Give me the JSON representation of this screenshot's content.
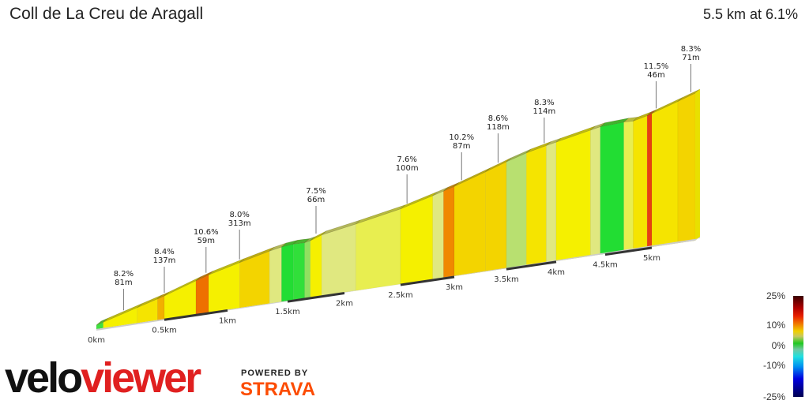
{
  "header": {
    "title": "Coll de La Creu de Aragall",
    "summary": "5.5 km at 6.1%"
  },
  "chart_data": {
    "type": "area",
    "title": "Coll de La Creu de Aragall",
    "total_distance_km": 5.5,
    "average_grade_pct": 6.1,
    "x_ticks": [
      "0km",
      "0.5km",
      "1km",
      "1.5km",
      "2km",
      "2.5km",
      "3km",
      "3.5km",
      "4km",
      "4.5km",
      "5km"
    ],
    "segments": [
      {
        "from": 0,
        "to": 0.05,
        "grade": 1
      },
      {
        "from": 0.05,
        "to": 0.3,
        "grade": 6
      },
      {
        "from": 0.3,
        "to": 0.45,
        "grade": 7
      },
      {
        "from": 0.45,
        "to": 0.5,
        "grade": 9
      },
      {
        "from": 0.5,
        "to": 0.75,
        "grade": 6
      },
      {
        "from": 0.75,
        "to": 0.85,
        "grade": 11
      },
      {
        "from": 0.85,
        "to": 1.1,
        "grade": 6
      },
      {
        "from": 1.1,
        "to": 1.35,
        "grade": 8
      },
      {
        "from": 1.35,
        "to": 1.45,
        "grade": 4
      },
      {
        "from": 1.45,
        "to": 1.55,
        "grade": 0
      },
      {
        "from": 1.55,
        "to": 1.65,
        "grade": 0.5
      },
      {
        "from": 1.65,
        "to": 1.7,
        "grade": 2
      },
      {
        "from": 1.7,
        "to": 1.8,
        "grade": 6
      },
      {
        "from": 1.8,
        "to": 2.1,
        "grade": 4
      },
      {
        "from": 2.1,
        "to": 2.5,
        "grade": 5
      },
      {
        "from": 2.5,
        "to": 2.8,
        "grade": 6
      },
      {
        "from": 2.8,
        "to": 2.9,
        "grade": 4
      },
      {
        "from": 2.9,
        "to": 3.0,
        "grade": 10
      },
      {
        "from": 3.0,
        "to": 3.3,
        "grade": 8
      },
      {
        "from": 3.3,
        "to": 3.5,
        "grade": 8
      },
      {
        "from": 3.5,
        "to": 3.7,
        "grade": 3
      },
      {
        "from": 3.7,
        "to": 3.9,
        "grade": 7
      },
      {
        "from": 3.9,
        "to": 4.0,
        "grade": 4
      },
      {
        "from": 4.0,
        "to": 4.35,
        "grade": 6
      },
      {
        "from": 4.35,
        "to": 4.45,
        "grade": 4
      },
      {
        "from": 4.45,
        "to": 4.7,
        "grade": 0
      },
      {
        "from": 4.7,
        "to": 4.8,
        "grade": 5
      },
      {
        "from": 4.8,
        "to": 4.95,
        "grade": 7
      },
      {
        "from": 4.95,
        "to": 5.0,
        "grade": 12
      },
      {
        "from": 5.0,
        "to": 5.3,
        "grade": 7
      },
      {
        "from": 5.3,
        "to": 5.5,
        "grade": 8
      }
    ],
    "annotations": [
      {
        "km": 0.2,
        "grade": "8.2%",
        "length": "81m"
      },
      {
        "km": 0.5,
        "grade": "8.4%",
        "length": "137m"
      },
      {
        "km": 0.83,
        "grade": "10.6%",
        "length": "59m"
      },
      {
        "km": 1.1,
        "grade": "8.0%",
        "length": "313m"
      },
      {
        "km": 1.75,
        "grade": "7.5%",
        "length": "66m"
      },
      {
        "km": 2.56,
        "grade": "7.6%",
        "length": "100m"
      },
      {
        "km": 3.07,
        "grade": "10.2%",
        "length": "87m"
      },
      {
        "km": 3.42,
        "grade": "8.6%",
        "length": "118m"
      },
      {
        "km": 3.88,
        "grade": "8.3%",
        "length": "114m"
      },
      {
        "km": 5.05,
        "grade": "11.5%",
        "length": "46m"
      },
      {
        "km": 5.45,
        "grade": "8.3%",
        "length": "71m"
      }
    ],
    "color_scale": {
      "labels": [
        "25%",
        "10%",
        "0%",
        "-10%",
        "-25%"
      ]
    }
  },
  "branding": {
    "velo": "velo",
    "viewer": "viewer",
    "powered_by": "POWERED BY",
    "strava": "STRAVA"
  }
}
